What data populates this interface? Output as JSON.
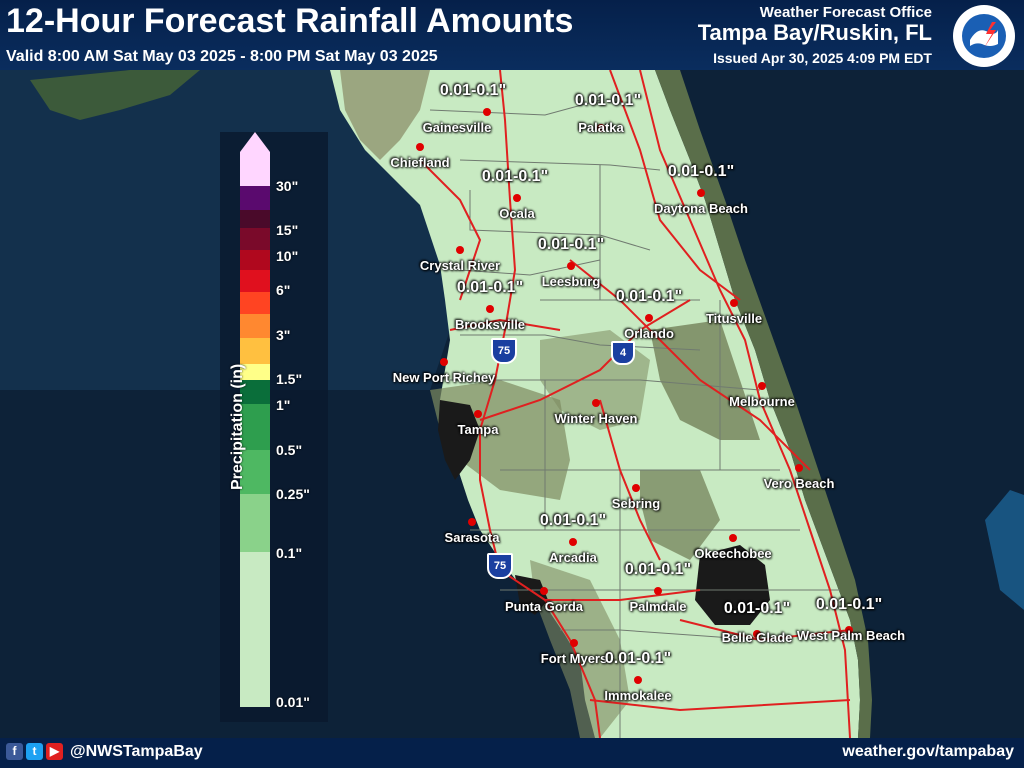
{
  "header": {
    "title": "12-Hour Forecast Rainfall Amounts",
    "valid": "Valid 8:00 AM Sat May 03 2025 - 8:00 PM Sat May 03 2025",
    "office": "Weather Forecast Office",
    "office_name": "Tampa Bay/Ruskin, FL",
    "issued": "Issued Apr 30, 2025 4:09 PM EDT"
  },
  "seal": {
    "text": "NATIONAL WEATHER SERVICE",
    "icon": "nws-seal-icon"
  },
  "footer": {
    "handle": "@NWSTampaBay",
    "site": "weather.gov/tampabay",
    "icons": [
      "facebook-icon",
      "twitter-icon",
      "youtube-icon"
    ]
  },
  "colors": {
    "land": "#c8eac2",
    "water": "#0d2238",
    "header": "#05204a",
    "roads": "#e02020",
    "city_dot": "#e00000"
  },
  "legend": {
    "title": "Precipitation (in)",
    "ticks": [
      "30\"",
      "15\"",
      "10\"",
      "6\"",
      "3\"",
      "1.5\"",
      "1\"",
      "0.5\"",
      "0.25\"",
      "0.1\"",
      "0.01\""
    ],
    "colors": [
      "#ffd6ff",
      "#5a0a6e",
      "#4a0a2a",
      "#7a0a2a",
      "#b0081e",
      "#e0101e",
      "#ff4422",
      "#ff8830",
      "#ffc040",
      "#ffff88",
      "#0a6e3a",
      "#2e9e4e",
      "#4eb862",
      "#8ad28a",
      "#c8eac2"
    ]
  },
  "cities": [
    {
      "name": "Gainesville",
      "amount": "0.01-0.1\""
    },
    {
      "name": "Palatka",
      "amount": "0.01-0.1\""
    },
    {
      "name": "Chiefland",
      "amount": ""
    },
    {
      "name": "Ocala",
      "amount": "0.01-0.1\""
    },
    {
      "name": "Daytona Beach",
      "amount": "0.01-0.1\""
    },
    {
      "name": "Crystal River",
      "amount": ""
    },
    {
      "name": "Leesburg",
      "amount": "0.01-0.1\""
    },
    {
      "name": "Brooksville",
      "amount": "0.01-0.1\""
    },
    {
      "name": "Orlando",
      "amount": "0.01-0.1\""
    },
    {
      "name": "Titusville",
      "amount": ""
    },
    {
      "name": "New Port Richey",
      "amount": ""
    },
    {
      "name": "Melbourne",
      "amount": ""
    },
    {
      "name": "Winter Haven",
      "amount": ""
    },
    {
      "name": "Tampa",
      "amount": ""
    },
    {
      "name": "Vero Beach",
      "amount": ""
    },
    {
      "name": "Sebring",
      "amount": ""
    },
    {
      "name": "Sarasota",
      "amount": ""
    },
    {
      "name": "Arcadia",
      "amount": "0.01-0.1\""
    },
    {
      "name": "Okeechobee",
      "amount": ""
    },
    {
      "name": "Palmdale",
      "amount": "0.01-0.1\""
    },
    {
      "name": "Punta Gorda",
      "amount": ""
    },
    {
      "name": "Belle Glade",
      "amount": "0.01-0.1\""
    },
    {
      "name": "West Palm Beach",
      "amount": "0.01-0.1\""
    },
    {
      "name": "Fort Myers",
      "amount": ""
    },
    {
      "name": "Immokalee",
      "amount": "0.01-0.1\""
    }
  ],
  "shields": [
    {
      "label": "75",
      "icon": "interstate-shield-icon"
    },
    {
      "label": "4",
      "icon": "interstate-shield-icon"
    },
    {
      "label": "75",
      "icon": "interstate-shield-icon"
    }
  ]
}
